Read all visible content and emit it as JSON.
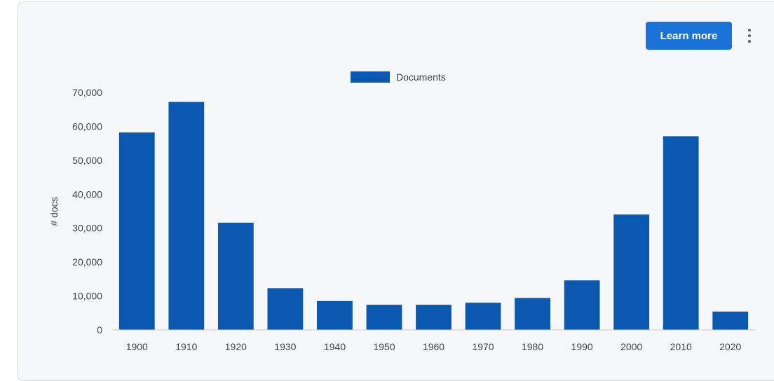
{
  "header": {
    "learn_more_label": "Learn more",
    "more_icon": "more-vert-icon"
  },
  "colors": {
    "bar": "#0a58b0",
    "button": "#1a73d6",
    "card_background": "#f6f7f8"
  },
  "chart_data": {
    "type": "bar",
    "categories": [
      "1900",
      "1910",
      "1920",
      "1930",
      "1940",
      "1950",
      "1960",
      "1970",
      "1980",
      "1990",
      "2000",
      "2010",
      "2020"
    ],
    "series": [
      {
        "name": "Documents",
        "values": [
          58200,
          67200,
          31600,
          12300,
          8500,
          7400,
          7400,
          8000,
          9400,
          14600,
          34000,
          57100,
          5400
        ]
      }
    ],
    "title": "",
    "xlabel": "",
    "ylabel": "# docs",
    "ylim": [
      0,
      70000
    ],
    "yticks": [
      "0",
      "10,000",
      "20,000",
      "30,000",
      "40,000",
      "50,000",
      "60,000",
      "70,000"
    ],
    "ytick_values": [
      0,
      10000,
      20000,
      30000,
      40000,
      50000,
      60000,
      70000
    ],
    "legend_position": "top",
    "grid": false
  }
}
